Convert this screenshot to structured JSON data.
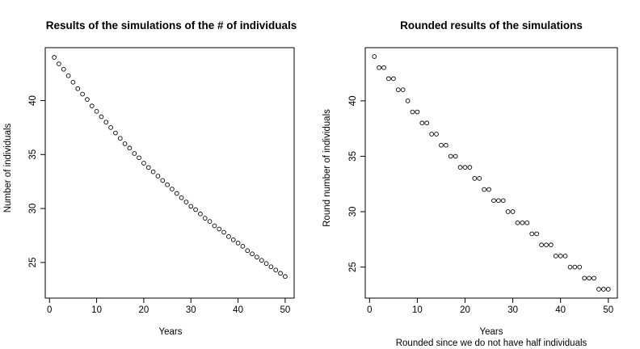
{
  "chart_data": [
    {
      "type": "scatter",
      "title": "Results of the simulations of the # of individuals",
      "xlabel": "Years",
      "ylabel": "Number of individuals",
      "subtitle": "",
      "xlim": [
        -0.9,
        51.9
      ],
      "ylim": [
        21.7,
        44.9
      ],
      "xticks": [
        0,
        10,
        20,
        30,
        40,
        50
      ],
      "yticks": [
        25,
        30,
        35,
        40
      ],
      "grid": false,
      "marker": "open-circle",
      "x": [
        1,
        2,
        3,
        4,
        5,
        6,
        7,
        8,
        9,
        10,
        11,
        12,
        13,
        14,
        15,
        16,
        17,
        18,
        19,
        20,
        21,
        22,
        23,
        24,
        25,
        26,
        27,
        28,
        29,
        30,
        31,
        32,
        33,
        34,
        35,
        36,
        37,
        38,
        39,
        40,
        41,
        42,
        43,
        44,
        45,
        46,
        47,
        48,
        49,
        50
      ],
      "y": [
        44.0,
        43.4,
        42.9,
        42.3,
        41.7,
        41.1,
        40.6,
        40.1,
        39.5,
        39.0,
        38.5,
        38.0,
        37.5,
        37.0,
        36.5,
        36.0,
        35.6,
        35.1,
        34.7,
        34.2,
        33.8,
        33.4,
        33.0,
        32.6,
        32.2,
        31.8,
        31.4,
        31.0,
        30.6,
        30.2,
        29.9,
        29.5,
        29.1,
        28.8,
        28.4,
        28.1,
        27.8,
        27.4,
        27.1,
        26.8,
        26.5,
        26.1,
        25.8,
        25.5,
        25.2,
        24.9,
        24.6,
        24.3,
        24.0,
        23.7
      ]
    },
    {
      "type": "scatter",
      "title": "Rounded results of the simulations",
      "xlabel": "Years",
      "ylabel": "Round number of individuals",
      "subtitle": "Rounded since we do not have half individuals",
      "xlim": [
        -0.9,
        51.9
      ],
      "ylim": [
        22.2,
        44.8
      ],
      "xticks": [
        0,
        10,
        20,
        30,
        40,
        50
      ],
      "yticks": [
        25,
        30,
        35,
        40
      ],
      "grid": false,
      "marker": "open-circle",
      "x": [
        1,
        2,
        3,
        4,
        5,
        6,
        7,
        8,
        9,
        10,
        11,
        12,
        13,
        14,
        15,
        16,
        17,
        18,
        19,
        20,
        21,
        22,
        23,
        24,
        25,
        26,
        27,
        28,
        29,
        30,
        31,
        32,
        33,
        34,
        35,
        36,
        37,
        38,
        39,
        40,
        41,
        42,
        43,
        44,
        45,
        46,
        47,
        48,
        49,
        50
      ],
      "y": [
        44,
        43,
        43,
        42,
        42,
        41,
        41,
        40,
        39,
        39,
        38,
        38,
        37,
        37,
        36,
        36,
        35,
        35,
        34,
        34,
        34,
        33,
        33,
        32,
        32,
        31,
        31,
        31,
        30,
        30,
        29,
        29,
        29,
        28,
        28,
        27,
        27,
        27,
        26,
        26,
        26,
        25,
        25,
        25,
        24,
        24,
        24,
        23,
        23,
        23
      ]
    }
  ]
}
